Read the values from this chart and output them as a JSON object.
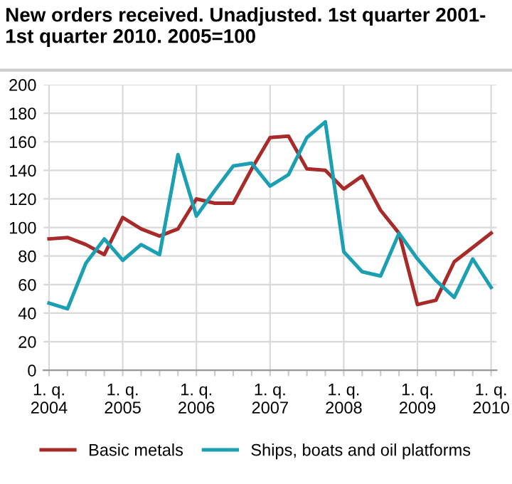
{
  "chart_data": {
    "type": "line",
    "title": "New orders received. Unadjusted. 1st quarter 2001-\n1st quarter 2010. 2005=100",
    "categories": [
      "1. q.\n2004",
      null,
      null,
      null,
      "1. q.\n2005",
      null,
      null,
      null,
      "1. q.\n2006",
      null,
      null,
      null,
      "1. q.\n2007",
      null,
      null,
      null,
      "1. q.\n2008",
      null,
      null,
      null,
      "1. q.\n2009",
      null,
      null,
      null,
      "1. q.\n2010"
    ],
    "series": [
      {
        "name": "Basic metals",
        "color": "#a82b2a",
        "values": [
          92,
          93,
          88,
          81,
          107,
          99,
          94,
          99,
          120,
          117,
          117,
          141,
          163,
          164,
          141,
          140,
          127,
          136,
          112,
          96,
          46,
          49,
          76,
          86,
          96
        ]
      },
      {
        "name": "Ships, boats and oil platforms",
        "color": "#1a9fb3",
        "values": [
          47,
          43,
          75,
          92,
          77,
          88,
          81,
          151,
          108,
          126,
          143,
          145,
          129,
          137,
          163,
          174,
          83,
          69,
          66,
          96,
          78,
          63,
          51,
          78,
          58
        ]
      }
    ],
    "ylim": [
      0,
      200
    ],
    "yticks": [
      0,
      20,
      40,
      60,
      80,
      100,
      120,
      140,
      160,
      180,
      200
    ],
    "grid": true,
    "legend": "bottom",
    "marker": "none",
    "line_style": "solid"
  }
}
